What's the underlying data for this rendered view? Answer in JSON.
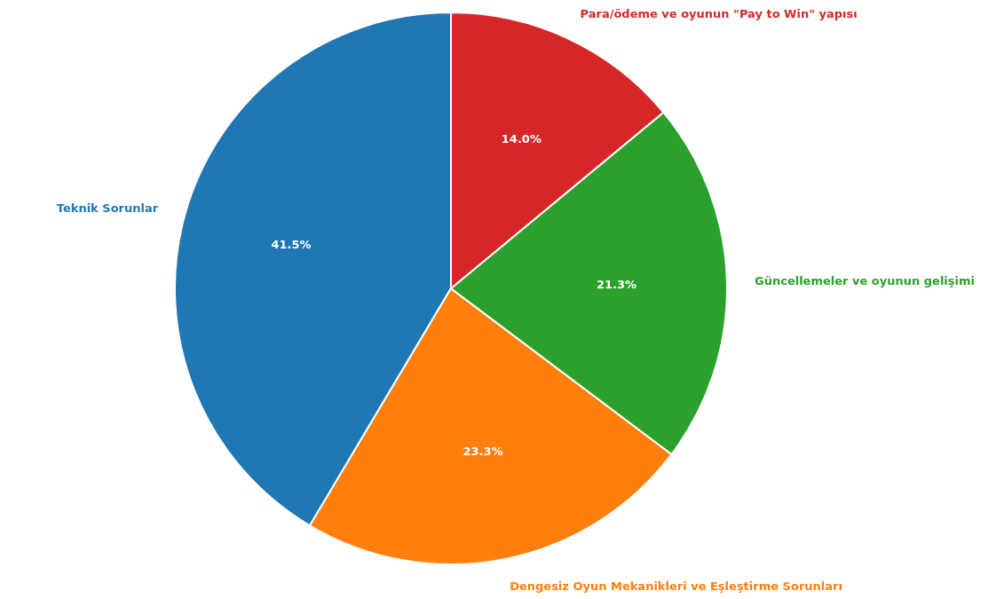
{
  "chart_data": {
    "type": "pie",
    "categories": [
      "Teknik Sorunlar",
      "Dengesiz Oyun Mekanikleri ve Eşleştirme Sorunları",
      "Güncellemeler ve oyunun gelişimi",
      "Para/ödeme ve oyunun \"Pay to Win\" yapısı"
    ],
    "values": [
      41.5,
      23.3,
      21.3,
      14.0
    ],
    "colors": [
      "#1f77b4",
      "#ff7f0e",
      "#2ca02c",
      "#d62728"
    ],
    "value_labels": [
      "41.5%",
      "23.3%",
      "21.3%",
      "14.0%"
    ]
  }
}
